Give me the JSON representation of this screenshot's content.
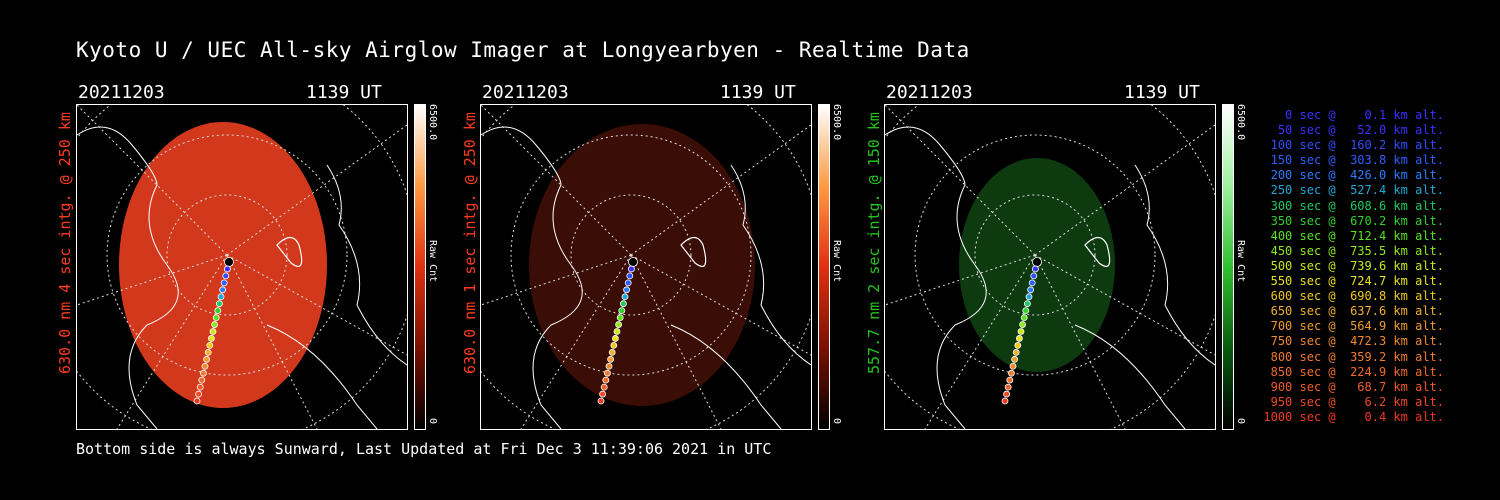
{
  "title": "Kyoto U / UEC All-sky Airglow Imager at Longyearbyen - Realtime Data",
  "footer": "Bottom side is always Sunward, Last Updated at Fri Dec  3 11:39:06 2021 in UTC",
  "panels": [
    {
      "date": "20211203",
      "time": "1139 UT",
      "ylabel": "630.0 nm 4 sec intg. @ 250 km",
      "cbar_max": "6500.0",
      "cbar_min": "0",
      "cbar_unit": "Raw Cnt",
      "label_color": "#ff3b1f",
      "fill": "#d2381c"
    },
    {
      "date": "20211203",
      "time": "1139 UT",
      "ylabel": "630.0 nm 1 sec intg. @ 250 km",
      "cbar_max": "6500.0",
      "cbar_min": "0",
      "cbar_unit": "Raw Cnt",
      "label_color": "#ff3b1f",
      "fill": "#3a0d06"
    },
    {
      "date": "20211203",
      "time": "1139 UT",
      "ylabel": "557.7 nm 2 sec intg. @ 150 km",
      "cbar_max": "6500.0",
      "cbar_min": "0",
      "cbar_unit": "Raw Cnt",
      "label_color": "#22c51a",
      "fill": "#0e3a10"
    }
  ],
  "legend": [
    {
      "text": "0 sec @    0.1 km alt.",
      "color": "#3a30ff"
    },
    {
      "text": "50 sec @   52.0 km alt.",
      "color": "#3a30ff"
    },
    {
      "text": "100 sec @  160.2 km alt.",
      "color": "#2f4fff"
    },
    {
      "text": "150 sec @  303.8 km alt.",
      "color": "#2f5fff"
    },
    {
      "text": "200 sec @  426.0 km alt.",
      "color": "#2a7cff"
    },
    {
      "text": "250 sec @  527.4 km alt.",
      "color": "#22a6d8"
    },
    {
      "text": "300 sec @  608.6 km alt.",
      "color": "#20c860"
    },
    {
      "text": "350 sec @  670.2 km alt.",
      "color": "#34d030"
    },
    {
      "text": "400 sec @  712.4 km alt.",
      "color": "#5ae020"
    },
    {
      "text": "450 sec @  735.5 km alt.",
      "color": "#90e81e"
    },
    {
      "text": "500 sec @  739.6 km alt.",
      "color": "#c6e81e"
    },
    {
      "text": "550 sec @  724.7 km alt.",
      "color": "#e8e020"
    },
    {
      "text": "600 sec @  690.8 km alt.",
      "color": "#f0c81e"
    },
    {
      "text": "650 sec @  637.6 km alt.",
      "color": "#f0b030"
    },
    {
      "text": "700 sec @  564.9 km alt.",
      "color": "#f09a30"
    },
    {
      "text": "750 sec @  472.3 km alt.",
      "color": "#f08830"
    },
    {
      "text": "800 sec @  359.2 km alt.",
      "color": "#f07a30"
    },
    {
      "text": "850 sec @  224.9 km alt.",
      "color": "#f06a2c"
    },
    {
      "text": "900 sec @   68.7 km alt.",
      "color": "#f05a28"
    },
    {
      "text": "950 sec @    6.2 km alt.",
      "color": "#f04a24"
    },
    {
      "text": "1000 sec @    0.4 km alt.",
      "color": "#f03a20"
    }
  ]
}
